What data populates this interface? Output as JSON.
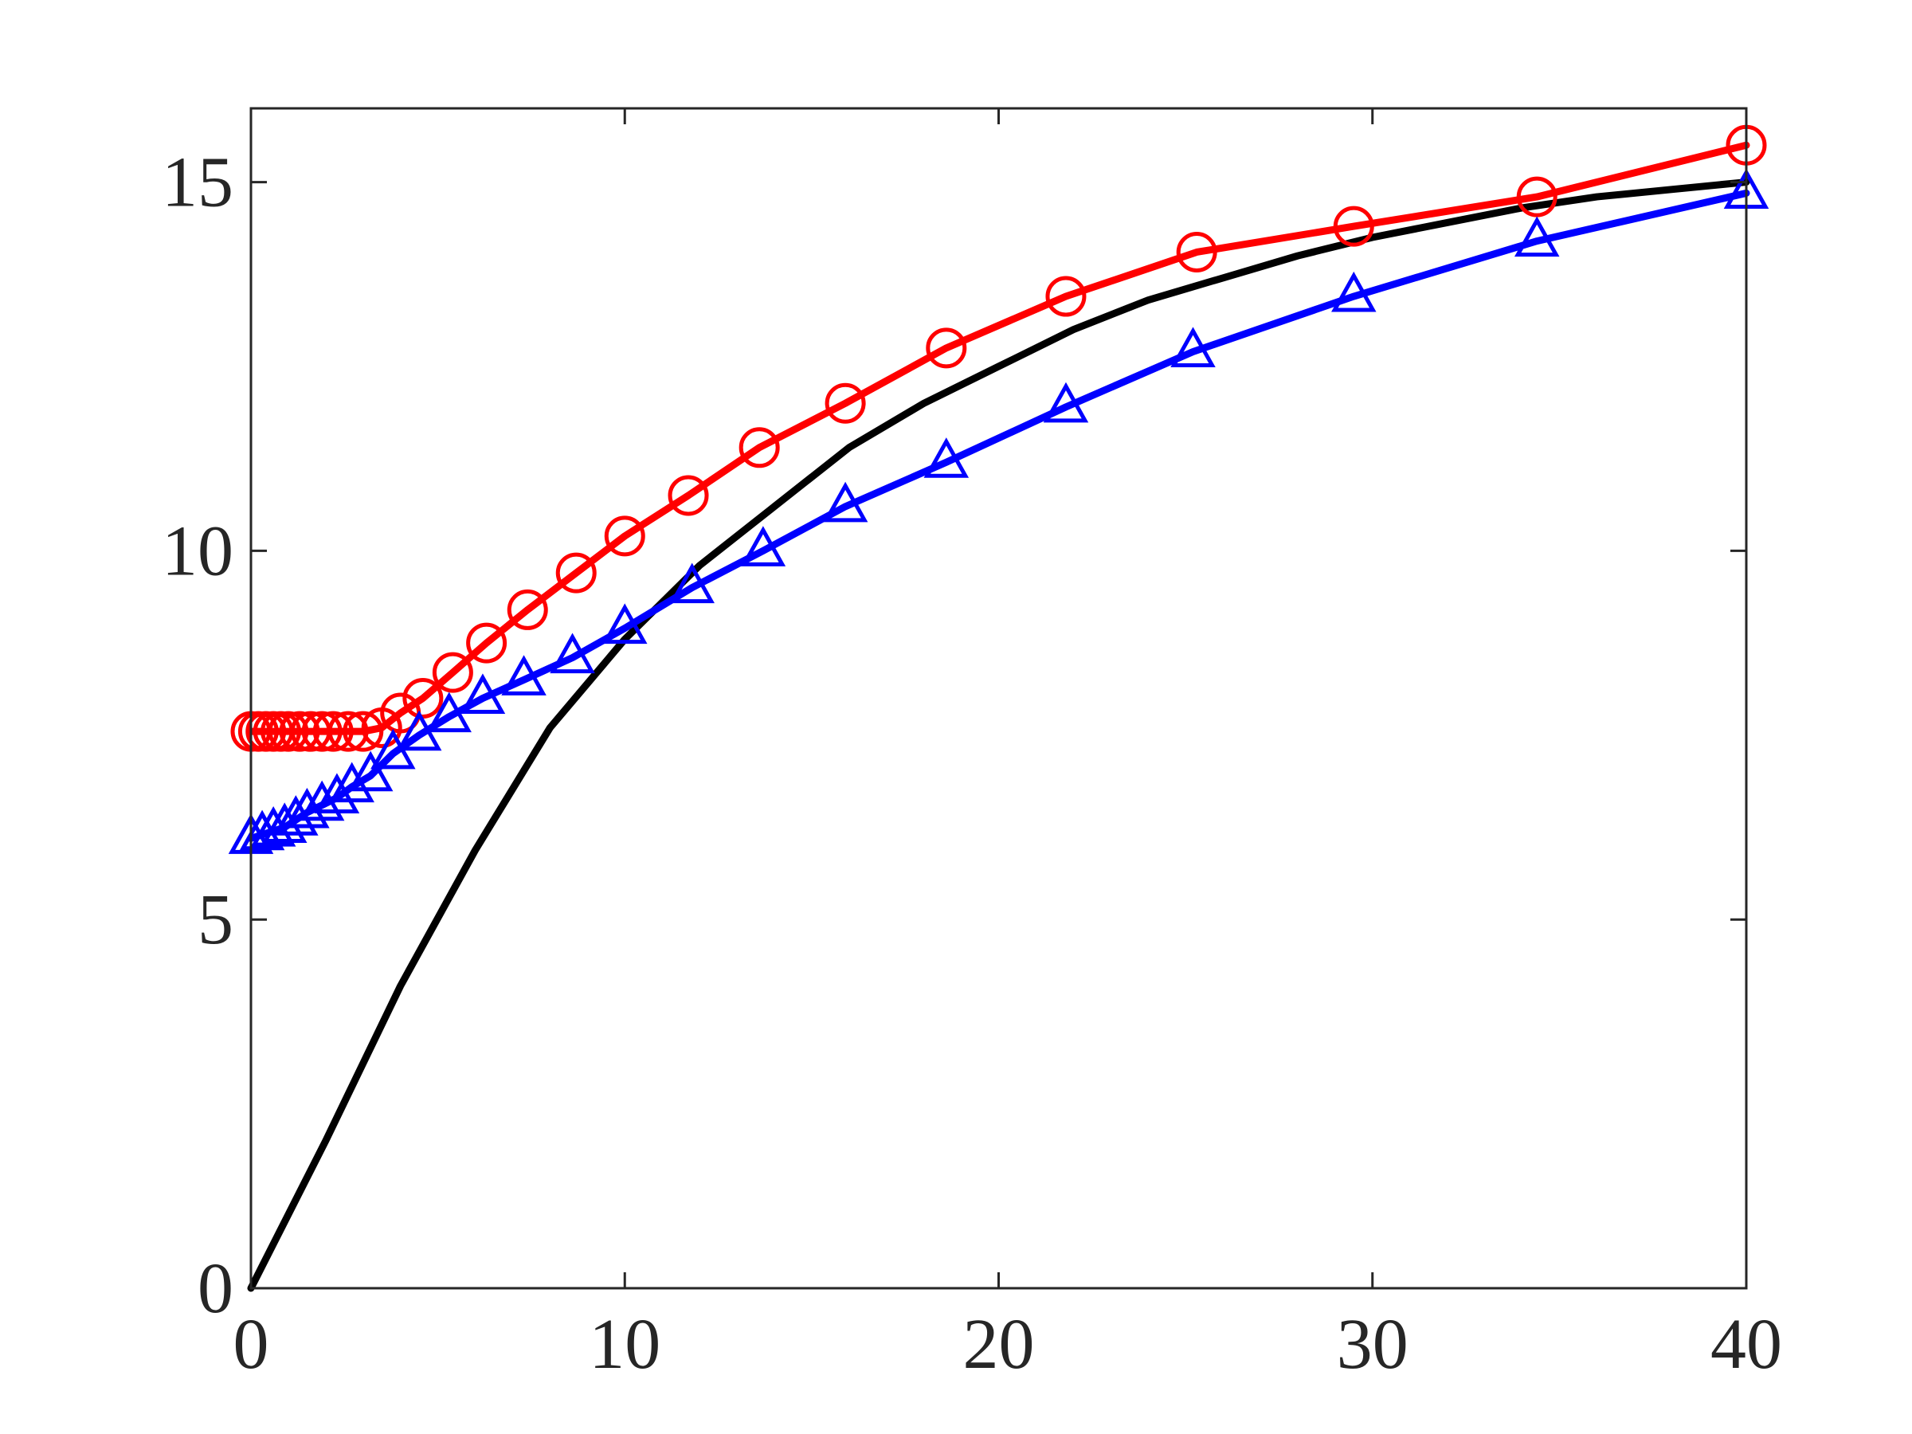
{
  "chart_data": {
    "type": "line",
    "xlim": [
      0,
      40
    ],
    "xticks": [
      0,
      10,
      20,
      30,
      40
    ],
    "ylim": [
      0,
      16
    ],
    "yticks": [
      0,
      5,
      10,
      15
    ],
    "series": [
      {
        "color": "#000000",
        "marker": "none",
        "x": [
          0,
          2,
          4,
          6,
          8,
          10,
          12,
          14,
          16,
          18,
          20,
          22,
          24,
          26,
          28,
          30,
          32,
          34,
          36,
          38,
          40
        ],
        "values": [
          0,
          2.0,
          4.1,
          5.94,
          7.6,
          8.8,
          9.8,
          10.6,
          11.4,
          12.0,
          12.5,
          13.0,
          13.4,
          13.7,
          14.0,
          14.25,
          14.45,
          14.65,
          14.8,
          14.9,
          15.0
        ]
      },
      {
        "color": "#ff0000",
        "marker": "circle",
        "x": [
          0,
          0.2,
          0.4,
          0.6,
          0.8,
          1.0,
          1.3,
          1.6,
          1.9,
          2.2,
          2.6,
          3.0,
          3.5,
          4.0,
          4.6,
          5.4,
          6.3,
          7.4,
          8.7,
          10,
          11.7,
          13.6,
          15.9,
          18.6,
          21.8,
          25.3,
          29.5,
          34.4,
          40
        ],
        "values": [
          7.55,
          7.55,
          7.55,
          7.55,
          7.55,
          7.55,
          7.55,
          7.55,
          7.55,
          7.55,
          7.55,
          7.55,
          7.6,
          7.8,
          8.0,
          8.35,
          8.75,
          9.2,
          9.7,
          10.2,
          10.75,
          11.4,
          12.0,
          12.75,
          13.45,
          14.05,
          14.4,
          14.8,
          15.5
        ]
      },
      {
        "color": "#0000ff",
        "marker": "triangle",
        "x": [
          0,
          0.3,
          0.6,
          0.9,
          1.2,
          1.5,
          1.9,
          2.3,
          2.7,
          3.2,
          3.8,
          4.5,
          5.3,
          6.2,
          7.3,
          8.6,
          10,
          11.8,
          13.7,
          15.9,
          18.6,
          21.8,
          25.2,
          29.5,
          34.4,
          40
        ],
        "values": [
          6.1,
          6.15,
          6.2,
          6.25,
          6.35,
          6.45,
          6.55,
          6.65,
          6.8,
          6.95,
          7.25,
          7.5,
          7.75,
          8.0,
          8.25,
          8.55,
          8.95,
          9.5,
          10.0,
          10.6,
          11.2,
          11.95,
          12.7,
          13.45,
          14.2,
          14.85
        ]
      }
    ]
  }
}
